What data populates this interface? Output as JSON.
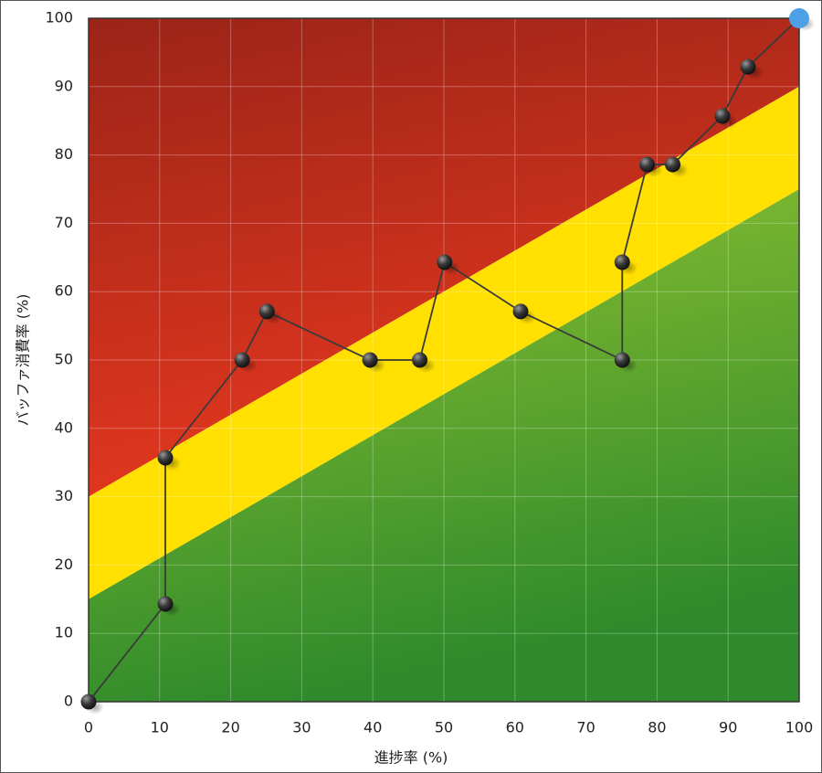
{
  "chart_data": {
    "type": "line",
    "x_label": "進捗率 (%)",
    "y_label": "バッファ消費率 (%)",
    "x": [
      0,
      10.8,
      10.8,
      21.6,
      25.1,
      39.6,
      46.6,
      50.1,
      60.8,
      75.1,
      75.1,
      78.6,
      82.2,
      89.2,
      92.8,
      100
    ],
    "series": [
      {
        "color": "#3a3a3a",
        "last_point_color": "#4d9fe6",
        "values": [
          0,
          14.3,
          35.7,
          50,
          57.1,
          50,
          50,
          64.3,
          57.1,
          50,
          64.3,
          78.6,
          78.6,
          85.7,
          92.9,
          100
        ]
      }
    ],
    "zones": [
      {
        "color_top": "#9b2418",
        "color_bottom": "#e6381f",
        "upper_start": 100,
        "upper_end": 100,
        "lower_start": 30,
        "lower_end": 90
      },
      {
        "color_top": "#ffe000",
        "color_bottom": "#ffe000",
        "upper_start": 30,
        "upper_end": 90,
        "lower_start": 15,
        "lower_end": 75
      },
      {
        "color_top": "#94c431",
        "color_bottom": "#2e8a2b",
        "upper_start": 15,
        "upper_end": 75,
        "lower_start": 0,
        "lower_end": 0
      }
    ],
    "xlim": [
      0,
      100
    ],
    "ylim": [
      0,
      100
    ],
    "xticks": [
      0,
      10,
      20,
      30,
      40,
      50,
      60,
      70,
      80,
      90,
      100
    ],
    "yticks": [
      0,
      10,
      20,
      30,
      40,
      50,
      60,
      70,
      80,
      90,
      100
    ],
    "grid": true
  }
}
